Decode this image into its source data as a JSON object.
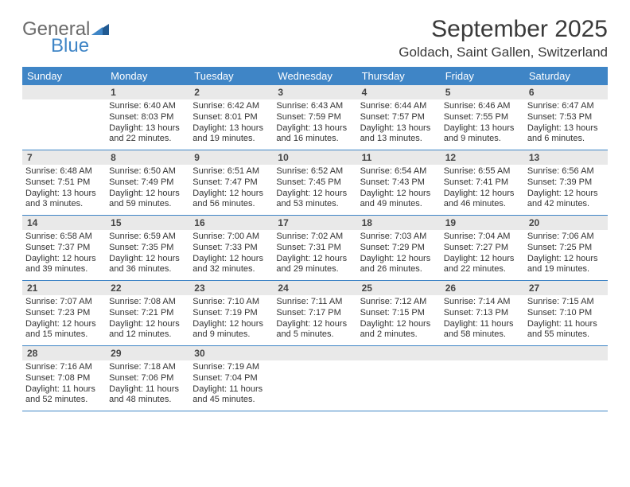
{
  "logo": {
    "text_general": "General",
    "text_blue": "Blue"
  },
  "header": {
    "month_title": "September 2025",
    "location": "Goldach, Saint Gallen, Switzerland"
  },
  "colors": {
    "header_bg": "#3f85c6",
    "header_text": "#ffffff",
    "daynum_bg": "#e9e9e9",
    "border": "#3f85c6",
    "body_text": "#333333"
  },
  "day_labels": [
    "Sunday",
    "Monday",
    "Tuesday",
    "Wednesday",
    "Thursday",
    "Friday",
    "Saturday"
  ],
  "weeks": [
    {
      "nums": [
        "",
        "1",
        "2",
        "3",
        "4",
        "5",
        "6"
      ],
      "cells": [
        null,
        {
          "sunrise": "Sunrise: 6:40 AM",
          "sunset": "Sunset: 8:03 PM",
          "d1": "Daylight: 13 hours",
          "d2": "and 22 minutes."
        },
        {
          "sunrise": "Sunrise: 6:42 AM",
          "sunset": "Sunset: 8:01 PM",
          "d1": "Daylight: 13 hours",
          "d2": "and 19 minutes."
        },
        {
          "sunrise": "Sunrise: 6:43 AM",
          "sunset": "Sunset: 7:59 PM",
          "d1": "Daylight: 13 hours",
          "d2": "and 16 minutes."
        },
        {
          "sunrise": "Sunrise: 6:44 AM",
          "sunset": "Sunset: 7:57 PM",
          "d1": "Daylight: 13 hours",
          "d2": "and 13 minutes."
        },
        {
          "sunrise": "Sunrise: 6:46 AM",
          "sunset": "Sunset: 7:55 PM",
          "d1": "Daylight: 13 hours",
          "d2": "and 9 minutes."
        },
        {
          "sunrise": "Sunrise: 6:47 AM",
          "sunset": "Sunset: 7:53 PM",
          "d1": "Daylight: 13 hours",
          "d2": "and 6 minutes."
        }
      ]
    },
    {
      "nums": [
        "7",
        "8",
        "9",
        "10",
        "11",
        "12",
        "13"
      ],
      "cells": [
        {
          "sunrise": "Sunrise: 6:48 AM",
          "sunset": "Sunset: 7:51 PM",
          "d1": "Daylight: 13 hours",
          "d2": "and 3 minutes."
        },
        {
          "sunrise": "Sunrise: 6:50 AM",
          "sunset": "Sunset: 7:49 PM",
          "d1": "Daylight: 12 hours",
          "d2": "and 59 minutes."
        },
        {
          "sunrise": "Sunrise: 6:51 AM",
          "sunset": "Sunset: 7:47 PM",
          "d1": "Daylight: 12 hours",
          "d2": "and 56 minutes."
        },
        {
          "sunrise": "Sunrise: 6:52 AM",
          "sunset": "Sunset: 7:45 PM",
          "d1": "Daylight: 12 hours",
          "d2": "and 53 minutes."
        },
        {
          "sunrise": "Sunrise: 6:54 AM",
          "sunset": "Sunset: 7:43 PM",
          "d1": "Daylight: 12 hours",
          "d2": "and 49 minutes."
        },
        {
          "sunrise": "Sunrise: 6:55 AM",
          "sunset": "Sunset: 7:41 PM",
          "d1": "Daylight: 12 hours",
          "d2": "and 46 minutes."
        },
        {
          "sunrise": "Sunrise: 6:56 AM",
          "sunset": "Sunset: 7:39 PM",
          "d1": "Daylight: 12 hours",
          "d2": "and 42 minutes."
        }
      ]
    },
    {
      "nums": [
        "14",
        "15",
        "16",
        "17",
        "18",
        "19",
        "20"
      ],
      "cells": [
        {
          "sunrise": "Sunrise: 6:58 AM",
          "sunset": "Sunset: 7:37 PM",
          "d1": "Daylight: 12 hours",
          "d2": "and 39 minutes."
        },
        {
          "sunrise": "Sunrise: 6:59 AM",
          "sunset": "Sunset: 7:35 PM",
          "d1": "Daylight: 12 hours",
          "d2": "and 36 minutes."
        },
        {
          "sunrise": "Sunrise: 7:00 AM",
          "sunset": "Sunset: 7:33 PM",
          "d1": "Daylight: 12 hours",
          "d2": "and 32 minutes."
        },
        {
          "sunrise": "Sunrise: 7:02 AM",
          "sunset": "Sunset: 7:31 PM",
          "d1": "Daylight: 12 hours",
          "d2": "and 29 minutes."
        },
        {
          "sunrise": "Sunrise: 7:03 AM",
          "sunset": "Sunset: 7:29 PM",
          "d1": "Daylight: 12 hours",
          "d2": "and 26 minutes."
        },
        {
          "sunrise": "Sunrise: 7:04 AM",
          "sunset": "Sunset: 7:27 PM",
          "d1": "Daylight: 12 hours",
          "d2": "and 22 minutes."
        },
        {
          "sunrise": "Sunrise: 7:06 AM",
          "sunset": "Sunset: 7:25 PM",
          "d1": "Daylight: 12 hours",
          "d2": "and 19 minutes."
        }
      ]
    },
    {
      "nums": [
        "21",
        "22",
        "23",
        "24",
        "25",
        "26",
        "27"
      ],
      "cells": [
        {
          "sunrise": "Sunrise: 7:07 AM",
          "sunset": "Sunset: 7:23 PM",
          "d1": "Daylight: 12 hours",
          "d2": "and 15 minutes."
        },
        {
          "sunrise": "Sunrise: 7:08 AM",
          "sunset": "Sunset: 7:21 PM",
          "d1": "Daylight: 12 hours",
          "d2": "and 12 minutes."
        },
        {
          "sunrise": "Sunrise: 7:10 AM",
          "sunset": "Sunset: 7:19 PM",
          "d1": "Daylight: 12 hours",
          "d2": "and 9 minutes."
        },
        {
          "sunrise": "Sunrise: 7:11 AM",
          "sunset": "Sunset: 7:17 PM",
          "d1": "Daylight: 12 hours",
          "d2": "and 5 minutes."
        },
        {
          "sunrise": "Sunrise: 7:12 AM",
          "sunset": "Sunset: 7:15 PM",
          "d1": "Daylight: 12 hours",
          "d2": "and 2 minutes."
        },
        {
          "sunrise": "Sunrise: 7:14 AM",
          "sunset": "Sunset: 7:13 PM",
          "d1": "Daylight: 11 hours",
          "d2": "and 58 minutes."
        },
        {
          "sunrise": "Sunrise: 7:15 AM",
          "sunset": "Sunset: 7:10 PM",
          "d1": "Daylight: 11 hours",
          "d2": "and 55 minutes."
        }
      ]
    },
    {
      "nums": [
        "28",
        "29",
        "30",
        "",
        "",
        "",
        ""
      ],
      "cells": [
        {
          "sunrise": "Sunrise: 7:16 AM",
          "sunset": "Sunset: 7:08 PM",
          "d1": "Daylight: 11 hours",
          "d2": "and 52 minutes."
        },
        {
          "sunrise": "Sunrise: 7:18 AM",
          "sunset": "Sunset: 7:06 PM",
          "d1": "Daylight: 11 hours",
          "d2": "and 48 minutes."
        },
        {
          "sunrise": "Sunrise: 7:19 AM",
          "sunset": "Sunset: 7:04 PM",
          "d1": "Daylight: 11 hours",
          "d2": "and 45 minutes."
        },
        null,
        null,
        null,
        null
      ]
    }
  ]
}
